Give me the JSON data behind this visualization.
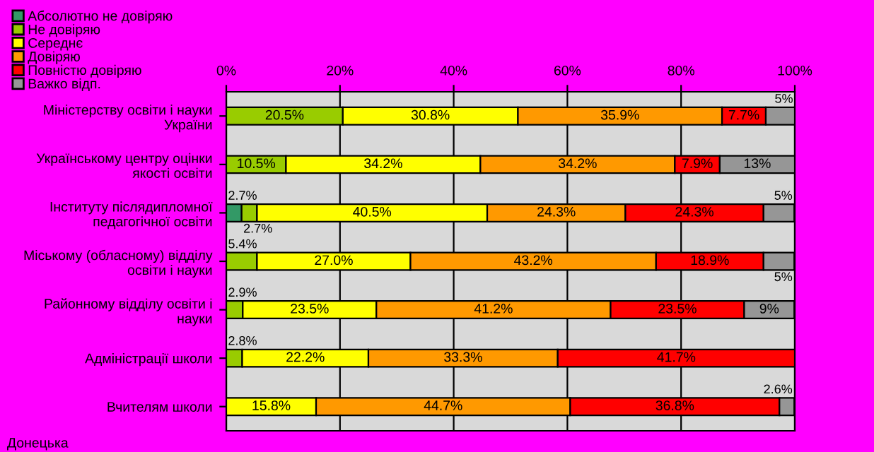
{
  "chart_data": {
    "type": "bar",
    "orientation": "horizontal",
    "stacked": true,
    "categories": [
      "Міністерству освіти і науки\nУкраїни",
      "Українському центру оцінки\nякості освіти",
      "Інституту післядипломної\nпедагогічної освіти",
      "Міському (обласному) відділу\nосвіти і науки",
      "Районному відділу освіти і\nнауки",
      "Адміністрації школи",
      "Вчителям школи"
    ],
    "series": [
      {
        "name": "Абсолютно не довіряю",
        "color": "#339966",
        "values": [
          null,
          null,
          2.7,
          null,
          null,
          null,
          null
        ],
        "value_labels": [
          null,
          null,
          "2.7%",
          null,
          null,
          null,
          null
        ]
      },
      {
        "name": "Не довіряю",
        "color": "#99cc00",
        "values": [
          20.5,
          10.5,
          2.7,
          5.4,
          2.9,
          2.8,
          null
        ],
        "value_labels": [
          "20.5%",
          "10.5%",
          "2.7%",
          "5.4%",
          "2.9%",
          "2.8%",
          null
        ]
      },
      {
        "name": "Середнє",
        "color": "#ffff00",
        "values": [
          30.8,
          34.2,
          40.5,
          27.0,
          23.5,
          22.2,
          15.8
        ],
        "value_labels": [
          "30.8%",
          "34.2%",
          "40.5%",
          "27.0%",
          "23.5%",
          "22.2%",
          "15.8%"
        ]
      },
      {
        "name": "Довіряю",
        "color": "#ff9900",
        "values": [
          35.9,
          34.2,
          24.3,
          43.2,
          41.2,
          33.3,
          44.7
        ],
        "value_labels": [
          "35.9%",
          "34.2%",
          "24.3%",
          "43.2%",
          "41.2%",
          "33.3%",
          "44.7%"
        ]
      },
      {
        "name": "Повністю довіряю",
        "color": "#ff0000",
        "values": [
          7.7,
          7.9,
          24.3,
          18.9,
          23.5,
          41.7,
          36.8
        ],
        "value_labels": [
          "7.7%",
          "7.9%",
          "24.3%",
          "18.9%",
          "23.5%",
          "41.7%",
          "36.8%"
        ]
      },
      {
        "name": "Важко відп.",
        "color": "#969696",
        "values": [
          5.1,
          13.2,
          5.4,
          5.4,
          8.8,
          null,
          2.6
        ],
        "value_labels": [
          "5%",
          "13%",
          "5%",
          "5%",
          "9%",
          null,
          "2.6%"
        ]
      }
    ],
    "xlim": [
      0,
      100
    ],
    "xticks": [
      {
        "value": 0,
        "label": "0%"
      },
      {
        "value": 20,
        "label": "20%"
      },
      {
        "value": 40,
        "label": "40%"
      },
      {
        "value": 60,
        "label": "60%"
      },
      {
        "value": 80,
        "label": "80%"
      },
      {
        "value": 100,
        "label": "100%"
      }
    ],
    "grid": "x",
    "legend": "top left",
    "annotations": [
      "Донецька"
    ]
  }
}
